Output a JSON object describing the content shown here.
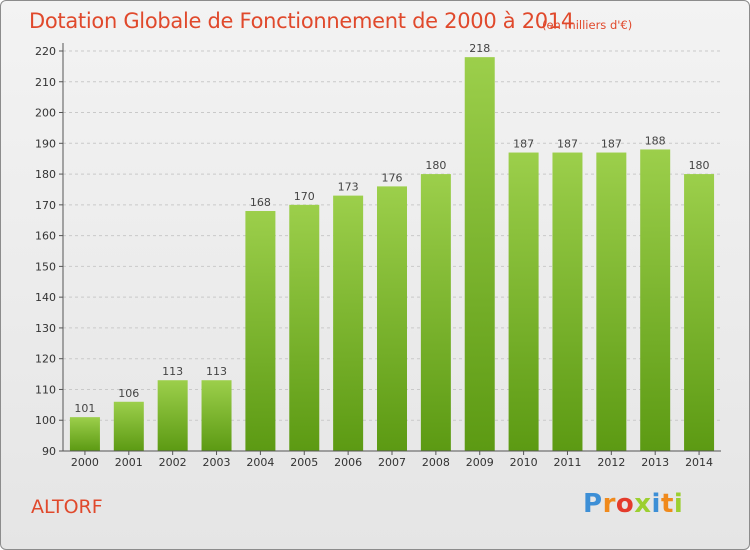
{
  "chart_data": {
    "type": "bar",
    "title": "Dotation Globale de Fonctionnement de 2000 à 2014",
    "subtitle": "(en milliers d'€)",
    "categories": [
      "2000",
      "2001",
      "2002",
      "2003",
      "2004",
      "2005",
      "2006",
      "2007",
      "2008",
      "2009",
      "2010",
      "2011",
      "2012",
      "2013",
      "2014"
    ],
    "values": [
      101,
      106,
      113,
      113,
      168,
      170,
      173,
      176,
      180,
      218,
      187,
      187,
      187,
      188,
      180
    ],
    "ylim": [
      90,
      220
    ],
    "yticks": [
      90,
      100,
      110,
      120,
      130,
      140,
      150,
      160,
      170,
      180,
      190,
      200,
      210,
      220
    ],
    "grid": true,
    "bar_color_top": "#9ccf4b",
    "bar_color_bottom": "#5c9a13",
    "xlabel": "",
    "ylabel": ""
  },
  "footer": {
    "place": "ALTORF",
    "logo_letters": [
      "P",
      "r",
      "o",
      "x",
      "i",
      "t",
      "i"
    ],
    "logo_colors": [
      "#3d8fd6",
      "#f08a1c",
      "#e43b2c",
      "#9ccf30",
      "#3d8fd6",
      "#f08a1c",
      "#9ccf30"
    ]
  },
  "colors": {
    "title": "#e0492c"
  }
}
